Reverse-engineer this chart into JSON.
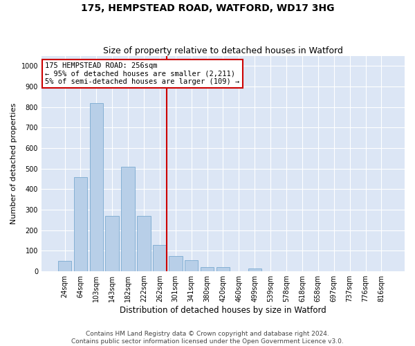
{
  "title": "175, HEMPSTEAD ROAD, WATFORD, WD17 3HG",
  "subtitle": "Size of property relative to detached houses in Watford",
  "xlabel": "Distribution of detached houses by size in Watford",
  "ylabel": "Number of detached properties",
  "categories": [
    "24sqm",
    "64sqm",
    "103sqm",
    "143sqm",
    "182sqm",
    "222sqm",
    "262sqm",
    "301sqm",
    "341sqm",
    "380sqm",
    "420sqm",
    "460sqm",
    "499sqm",
    "539sqm",
    "578sqm",
    "618sqm",
    "658sqm",
    "697sqm",
    "737sqm",
    "776sqm",
    "816sqm"
  ],
  "values": [
    50,
    460,
    820,
    270,
    510,
    270,
    130,
    75,
    55,
    20,
    20,
    0,
    15,
    0,
    0,
    0,
    0,
    0,
    0,
    0,
    0
  ],
  "bar_color": "#b8cfe8",
  "bar_edge_color": "#7aaad0",
  "red_line_index": 6,
  "annotation_line1": "175 HEMPSTEAD ROAD: 256sqm",
  "annotation_line2": "← 95% of detached houses are smaller (2,211)",
  "annotation_line3": "5% of semi-detached houses are larger (109) →",
  "annotation_box_color": "#ffffff",
  "annotation_box_edge_color": "#cc0000",
  "ylim": [
    0,
    1050
  ],
  "yticks": [
    0,
    100,
    200,
    300,
    400,
    500,
    600,
    700,
    800,
    900,
    1000
  ],
  "plot_bg_color": "#dce6f5",
  "fig_bg_color": "#ffffff",
  "grid_color": "#ffffff",
  "footer_line1": "Contains HM Land Registry data © Crown copyright and database right 2024.",
  "footer_line2": "Contains public sector information licensed under the Open Government Licence v3.0.",
  "title_fontsize": 10,
  "subtitle_fontsize": 9,
  "xlabel_fontsize": 8.5,
  "ylabel_fontsize": 8,
  "tick_fontsize": 7,
  "annotation_fontsize": 7.5,
  "footer_fontsize": 6.5
}
